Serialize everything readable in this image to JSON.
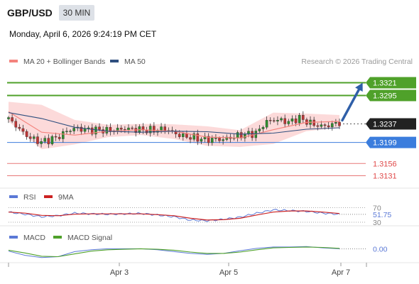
{
  "header": {
    "symbol": "GBP/USD",
    "timeframe": "30 MIN",
    "datetime": "Monday, April 6, 2026 9:24:19 PM CET"
  },
  "legend": {
    "ma20_label": "MA 20 + Bollinger Bands",
    "ma50_label": "MA 50",
    "credit": "Research © 2026 Trading Central",
    "colors": {
      "ma20": "#f4837d",
      "ma50": "#2f4f7f",
      "band_fill": "#fcd3d4"
    }
  },
  "chart_data": [
    {
      "type": "candlestick",
      "panel": "price",
      "x_ticks": [
        "Apr 3",
        "Apr 5",
        "Apr 7"
      ],
      "last_price": 1.3237,
      "ylim": [
        1.311,
        1.3345
      ],
      "close_path": [
        [
          0,
          1.3247
        ],
        [
          0.025,
          1.3232
        ],
        [
          0.05,
          1.3215
        ],
        [
          0.075,
          1.3205
        ],
        [
          0.1,
          1.32
        ],
        [
          0.125,
          1.3205
        ],
        [
          0.15,
          1.321
        ],
        [
          0.175,
          1.3222
        ],
        [
          0.2,
          1.3228
        ],
        [
          0.225,
          1.3226
        ],
        [
          0.25,
          1.3224
        ],
        [
          0.275,
          1.3225
        ],
        [
          0.3,
          1.3223
        ],
        [
          0.325,
          1.3225
        ],
        [
          0.35,
          1.3227
        ],
        [
          0.375,
          1.3226
        ],
        [
          0.4,
          1.3225
        ],
        [
          0.425,
          1.3224
        ],
        [
          0.45,
          1.3225
        ],
        [
          0.475,
          1.3227
        ],
        [
          0.5,
          1.3218
        ],
        [
          0.525,
          1.3212
        ],
        [
          0.55,
          1.321
        ],
        [
          0.575,
          1.3207
        ],
        [
          0.6,
          1.3205
        ],
        [
          0.625,
          1.3206
        ],
        [
          0.65,
          1.3205
        ],
        [
          0.675,
          1.321
        ],
        [
          0.7,
          1.3214
        ],
        [
          0.725,
          1.3216
        ],
        [
          0.75,
          1.3218
        ],
        [
          0.775,
          1.324
        ],
        [
          0.8,
          1.3245
        ],
        [
          0.825,
          1.3244
        ],
        [
          0.85,
          1.324
        ],
        [
          0.875,
          1.325
        ],
        [
          0.9,
          1.3242
        ],
        [
          0.925,
          1.3235
        ],
        [
          0.95,
          1.3232
        ],
        [
          0.975,
          1.3235
        ],
        [
          1,
          1.324
        ]
      ],
      "ma20": [
        [
          0,
          1.3262
        ],
        [
          0.1,
          1.322
        ],
        [
          0.2,
          1.3214
        ],
        [
          0.3,
          1.3222
        ],
        [
          0.4,
          1.3225
        ],
        [
          0.5,
          1.3222
        ],
        [
          0.6,
          1.321
        ],
        [
          0.7,
          1.3208
        ],
        [
          0.8,
          1.3225
        ],
        [
          0.9,
          1.324
        ],
        [
          1,
          1.3242
        ]
      ],
      "ma50": [
        [
          0,
          1.326
        ],
        [
          0.1,
          1.3248
        ],
        [
          0.2,
          1.323
        ],
        [
          0.3,
          1.3222
        ],
        [
          0.4,
          1.322
        ],
        [
          0.5,
          1.3222
        ],
        [
          0.6,
          1.3221
        ],
        [
          0.7,
          1.3216
        ],
        [
          0.8,
          1.3218
        ],
        [
          0.9,
          1.3226
        ],
        [
          1,
          1.3229
        ]
      ],
      "bollinger_upper": [
        [
          0,
          1.3282
        ],
        [
          0.1,
          1.3276
        ],
        [
          0.2,
          1.3245
        ],
        [
          0.3,
          1.3235
        ],
        [
          0.4,
          1.3237
        ],
        [
          0.5,
          1.3236
        ],
        [
          0.6,
          1.3232
        ],
        [
          0.7,
          1.3224
        ],
        [
          0.8,
          1.326
        ],
        [
          0.9,
          1.3258
        ],
        [
          1,
          1.3255
        ]
      ],
      "bollinger_lower": [
        [
          0,
          1.3242
        ],
        [
          0.1,
          1.3185
        ],
        [
          0.2,
          1.3195
        ],
        [
          0.3,
          1.321
        ],
        [
          0.4,
          1.3214
        ],
        [
          0.5,
          1.3206
        ],
        [
          0.6,
          1.3192
        ],
        [
          0.7,
          1.319
        ],
        [
          0.8,
          1.3196
        ],
        [
          0.9,
          1.3222
        ],
        [
          1,
          1.3229
        ]
      ],
      "levels": [
        {
          "value": 1.3321,
          "label": "1.3321",
          "kind": "resistance",
          "color": "#4fa12a"
        },
        {
          "value": 1.3295,
          "label": "1.3295",
          "kind": "resistance",
          "color": "#4fa12a"
        },
        {
          "value": 1.3237,
          "label": "1.3237",
          "kind": "last",
          "color": "#222222"
        },
        {
          "value": 1.3199,
          "label": "1.3199",
          "kind": "pivot",
          "color": "#3b7ddd"
        },
        {
          "value": 1.3156,
          "label": "1.3156",
          "kind": "support",
          "color": "#e04a4a"
        },
        {
          "value": 1.3131,
          "label": "1.3131",
          "kind": "support",
          "color": "#e04a4a"
        }
      ],
      "arrow": {
        "direction": "up",
        "from": [
          1.0,
          1.3237
        ],
        "to": [
          1.07,
          1.3321
        ],
        "color": "#2f5fa8"
      }
    },
    {
      "type": "line",
      "panel": "rsi",
      "legend": [
        "RSI",
        "9MA"
      ],
      "colors": [
        "#5b79d6",
        "#cc2222"
      ],
      "levels": [
        70,
        30
      ],
      "level_labels": [
        "70",
        "30"
      ],
      "current_label": "51.75",
      "current_color": "#5b79d6",
      "ylim": [
        28,
        75
      ],
      "rsi": [
        [
          0,
          58
        ],
        [
          0.05,
          52
        ],
        [
          0.1,
          45
        ],
        [
          0.15,
          48
        ],
        [
          0.2,
          55
        ],
        [
          0.25,
          53
        ],
        [
          0.3,
          52
        ],
        [
          0.35,
          53
        ],
        [
          0.4,
          54
        ],
        [
          0.45,
          50
        ],
        [
          0.5,
          45
        ],
        [
          0.55,
          36
        ],
        [
          0.6,
          34
        ],
        [
          0.65,
          38
        ],
        [
          0.7,
          44
        ],
        [
          0.75,
          55
        ],
        [
          0.8,
          64
        ],
        [
          0.85,
          62
        ],
        [
          0.9,
          60
        ],
        [
          0.95,
          55
        ],
        [
          1,
          52
        ]
      ],
      "ma9": [
        [
          0,
          58
        ],
        [
          0.05,
          55
        ],
        [
          0.1,
          49
        ],
        [
          0.15,
          48
        ],
        [
          0.2,
          52
        ],
        [
          0.25,
          53
        ],
        [
          0.3,
          53
        ],
        [
          0.35,
          53
        ],
        [
          0.4,
          53
        ],
        [
          0.45,
          51
        ],
        [
          0.5,
          48
        ],
        [
          0.55,
          41
        ],
        [
          0.6,
          36
        ],
        [
          0.65,
          37
        ],
        [
          0.7,
          41
        ],
        [
          0.75,
          50
        ],
        [
          0.8,
          58
        ],
        [
          0.85,
          61
        ],
        [
          0.9,
          61
        ],
        [
          0.95,
          58
        ],
        [
          1,
          54
        ]
      ]
    },
    {
      "type": "line",
      "panel": "macd",
      "legend": [
        "MACD",
        "MACD Signal"
      ],
      "colors": [
        "#5b79d6",
        "#4fa12a"
      ],
      "current_label": "0.00",
      "current_color": "#5b79d6",
      "ylim": [
        -0.0025,
        0.0015
      ],
      "macd": [
        [
          0,
          -0.0003
        ],
        [
          0.05,
          -0.0012
        ],
        [
          0.1,
          -0.0017
        ],
        [
          0.15,
          -0.0015
        ],
        [
          0.2,
          -0.0004
        ],
        [
          0.25,
          0.0
        ],
        [
          0.3,
          0.0002
        ],
        [
          0.35,
          0.0002
        ],
        [
          0.4,
          0.0002
        ],
        [
          0.45,
          0.0
        ],
        [
          0.5,
          -0.0004
        ],
        [
          0.55,
          -0.0008
        ],
        [
          0.6,
          -0.001
        ],
        [
          0.65,
          -0.0008
        ],
        [
          0.7,
          -0.0002
        ],
        [
          0.75,
          0.0003
        ],
        [
          0.8,
          0.0006
        ],
        [
          0.85,
          0.0006
        ],
        [
          0.9,
          0.0007
        ],
        [
          0.95,
          0.0004
        ],
        [
          1,
          0.0002
        ]
      ],
      "signal": [
        [
          0,
          -0.0001
        ],
        [
          0.05,
          -0.0007
        ],
        [
          0.1,
          -0.0014
        ],
        [
          0.15,
          -0.0015
        ],
        [
          0.2,
          -0.0009
        ],
        [
          0.25,
          -0.0003
        ],
        [
          0.3,
          0.0
        ],
        [
          0.35,
          0.0001
        ],
        [
          0.4,
          0.0002
        ],
        [
          0.45,
          0.0001
        ],
        [
          0.5,
          -0.0001
        ],
        [
          0.55,
          -0.0005
        ],
        [
          0.6,
          -0.0008
        ],
        [
          0.65,
          -0.0008
        ],
        [
          0.7,
          -0.0005
        ],
        [
          0.75,
          0.0
        ],
        [
          0.8,
          0.0004
        ],
        [
          0.85,
          0.0005
        ],
        [
          0.9,
          0.0006
        ],
        [
          0.95,
          0.0005
        ],
        [
          1,
          0.0003
        ]
      ]
    }
  ]
}
